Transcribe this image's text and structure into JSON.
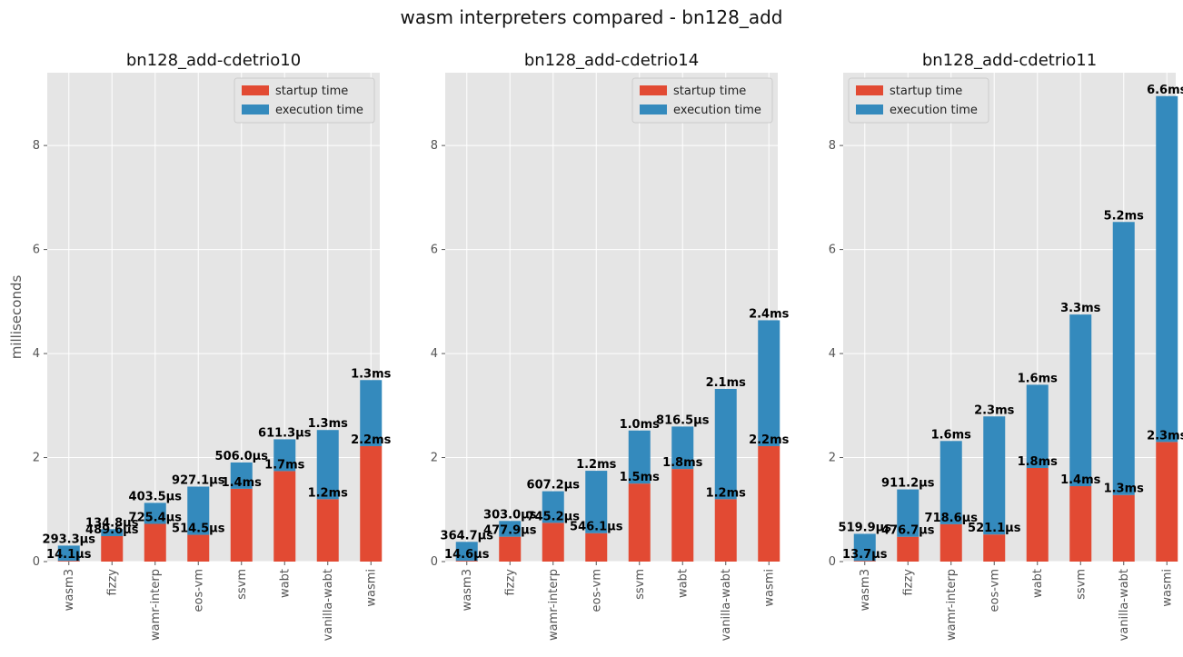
{
  "figure_title": "wasm interpreters compared - bn128_add",
  "chart_data": [
    {
      "type": "bar",
      "stacked": true,
      "title": "bn128_add-cdetrio10",
      "ylabel": "milliseconds",
      "ylim": [
        0,
        9.4
      ],
      "yticks": [
        0,
        2,
        4,
        6,
        8
      ],
      "grid": true,
      "legend_position": "top-right",
      "categories": [
        "wasm3",
        "fizzy",
        "wamr-interp",
        "eos-vm",
        "ssvm",
        "wabt",
        "vanilla-wabt",
        "wasmi"
      ],
      "series": [
        {
          "name": "startup time",
          "color": "#E24A33",
          "values": [
            0.0141,
            0.4896,
            0.7254,
            0.5145,
            1.4,
            1.74,
            1.2,
            2.22
          ],
          "labels": [
            "14.1µs",
            "489.6µs",
            "725.4µs",
            "514.5µs",
            "1.4ms",
            "1.7ms",
            "1.2ms",
            "2.2ms"
          ]
        },
        {
          "name": "execution time",
          "color": "#348ABD",
          "values": [
            0.2933,
            0.1348,
            0.4035,
            0.9271,
            0.506,
            0.6113,
            1.33,
            1.27
          ],
          "labels": [
            "293.3µs",
            "134.8µs",
            "403.5µs",
            "927.1µs",
            "506.0µs",
            "611.3µs",
            "1.3ms",
            "1.3ms"
          ]
        }
      ]
    },
    {
      "type": "bar",
      "stacked": true,
      "title": "bn128_add-cdetrio14",
      "ylabel": "",
      "ylim": [
        0,
        9.4
      ],
      "yticks": [
        0,
        2,
        4,
        6,
        8
      ],
      "grid": true,
      "legend_position": "top-right",
      "categories": [
        "wasm3",
        "fizzy",
        "wamr-interp",
        "eos-vm",
        "ssvm",
        "wabt",
        "vanilla-wabt",
        "wasmi"
      ],
      "series": [
        {
          "name": "startup time",
          "color": "#E24A33",
          "values": [
            0.0146,
            0.4779,
            0.7452,
            0.5461,
            1.5,
            1.78,
            1.2,
            2.22
          ],
          "labels": [
            "14.6µs",
            "477.9µs",
            "745.2µs",
            "546.1µs",
            "1.5ms",
            "1.8ms",
            "1.2ms",
            "2.2ms"
          ]
        },
        {
          "name": "execution time",
          "color": "#348ABD",
          "values": [
            0.3647,
            0.303,
            0.6072,
            1.2,
            1.02,
            0.8165,
            2.12,
            2.42
          ],
          "labels": [
            "364.7µs",
            "303.0µs",
            "607.2µs",
            "1.2ms",
            "1.0ms",
            "816.5µs",
            "2.1ms",
            "2.4ms"
          ]
        }
      ]
    },
    {
      "type": "bar",
      "stacked": true,
      "title": "bn128_add-cdetrio11",
      "ylabel": "",
      "ylim": [
        0,
        9.4
      ],
      "yticks": [
        0,
        2,
        4,
        6,
        8
      ],
      "grid": true,
      "legend_position": "top-left",
      "categories": [
        "wasm3",
        "fizzy",
        "wamr-interp",
        "eos-vm",
        "wabt",
        "ssvm",
        "vanilla-wabt",
        "wasmi"
      ],
      "series": [
        {
          "name": "startup time",
          "color": "#E24A33",
          "values": [
            0.0137,
            0.4767,
            0.7186,
            0.5211,
            1.8,
            1.45,
            1.28,
            2.3
          ],
          "labels": [
            "13.7µs",
            "476.7µs",
            "718.6µs",
            "521.1µs",
            "1.8ms",
            "1.4ms",
            "1.3ms",
            "2.3ms"
          ]
        },
        {
          "name": "execution time",
          "color": "#348ABD",
          "values": [
            0.5199,
            0.9112,
            1.6,
            2.27,
            1.6,
            3.3,
            5.25,
            6.65
          ],
          "labels": [
            "519.9µs",
            "911.2µs",
            "1.6ms",
            "2.3ms",
            "1.6ms",
            "3.3ms",
            "5.2ms",
            "6.6ms"
          ]
        }
      ]
    }
  ]
}
